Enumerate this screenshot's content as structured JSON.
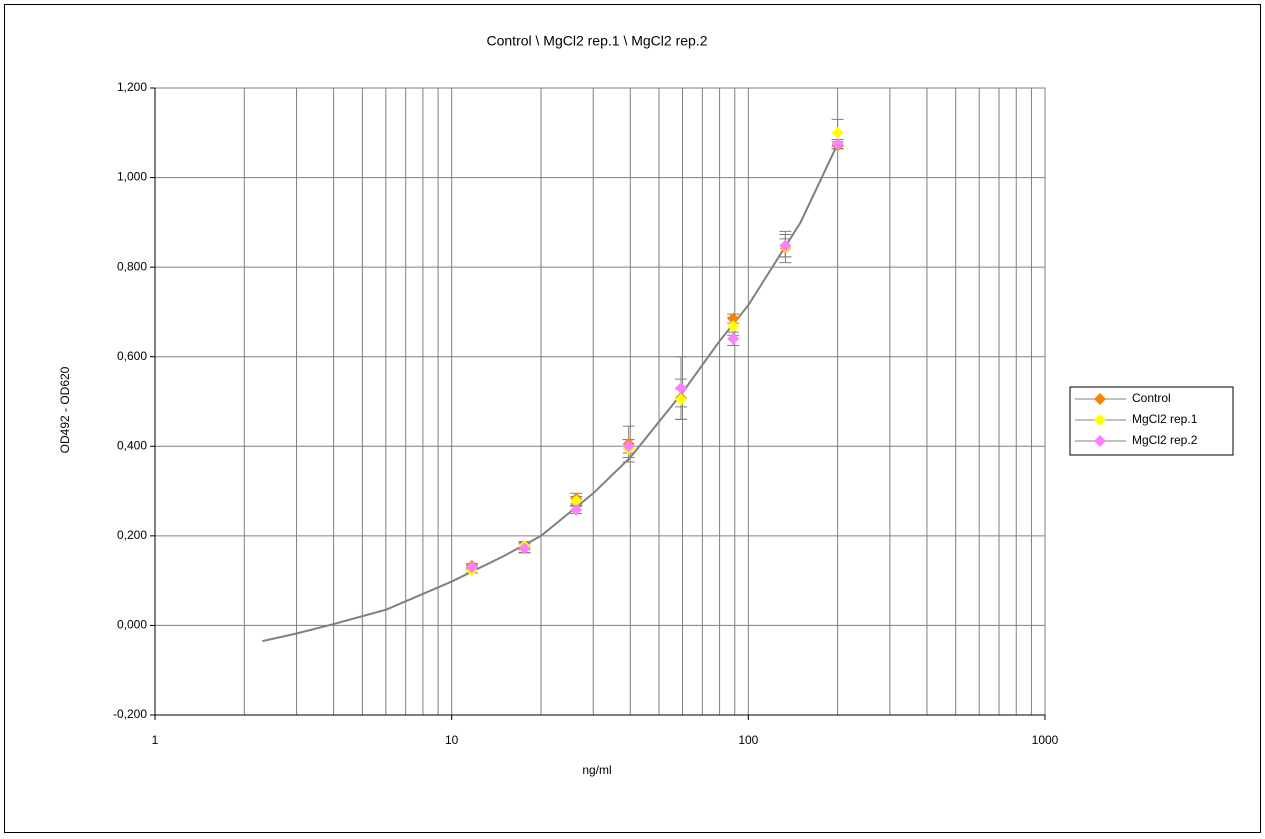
{
  "chart_data": {
    "type": "scatter",
    "title": "Control \\ MgCl2 rep.1 \\ MgCl2 rep.2",
    "x_label": "ng/ml",
    "y_label": "OD492 - OD620",
    "x_scale": "log",
    "grid": true,
    "legend": "right",
    "x": [
      11.7,
      17.6,
      26.3,
      39.5,
      59.3,
      88.9,
      133.3,
      200
    ],
    "series": [
      {
        "name": "Control",
        "color": "#ff7f00",
        "values": [
          0.133,
          0.175,
          0.283,
          0.405,
          0.508,
          0.685,
          0.843,
          1.072
        ],
        "errors": [
          0.005,
          0.012,
          0.012,
          0.04,
          0.02,
          0.01,
          0.02,
          0.008
        ]
      },
      {
        "name": "MgCl2 rep.1",
        "color": "#ffff00",
        "values": [
          0.123,
          0.177,
          0.278,
          0.395,
          0.505,
          0.668,
          0.845,
          1.1
        ],
        "errors": [
          0.006,
          0.008,
          0.01,
          0.02,
          0.045,
          0.02,
          0.035,
          0.03
        ]
      },
      {
        "name": "MgCl2 rep.2",
        "color": "#ff80ff",
        "values": [
          0.13,
          0.172,
          0.258,
          0.4,
          0.53,
          0.64,
          0.848,
          1.075
        ],
        "errors": [
          0.005,
          0.01,
          0.008,
          0.015,
          0.07,
          0.015,
          0.025,
          0.01
        ]
      }
    ],
    "fit": {
      "color": "#808080",
      "x": [
        2.3,
        3,
        4,
        6,
        10,
        15,
        20,
        30,
        40,
        60,
        80,
        100,
        150,
        200
      ],
      "values": [
        -0.035,
        -0.018,
        0.003,
        0.035,
        0.098,
        0.155,
        0.2,
        0.295,
        0.375,
        0.52,
        0.635,
        0.715,
        0.9,
        1.075
      ]
    },
    "xlim": [
      1,
      1000
    ],
    "xticks": [
      1,
      10,
      100,
      1000
    ],
    "ylim": [
      -0.2,
      1.2
    ],
    "yticks": [
      {
        "value": -0.2,
        "label": "-0,200"
      },
      {
        "value": 0,
        "label": "0,000"
      },
      {
        "value": 0.2,
        "label": "0,200"
      },
      {
        "value": 0.4,
        "label": "0,400"
      },
      {
        "value": 0.6,
        "label": "0,600"
      },
      {
        "value": 0.8,
        "label": "0,800"
      },
      {
        "value": 1.0,
        "label": "1,000"
      },
      {
        "value": 1.2,
        "label": "1,200"
      }
    ]
  }
}
